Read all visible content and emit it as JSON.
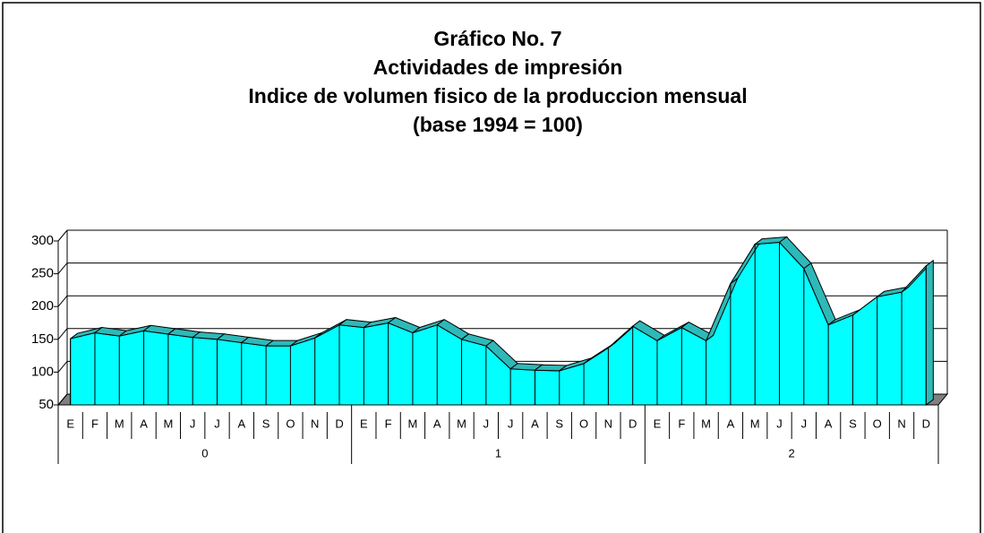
{
  "chart_data": {
    "type": "area3d",
    "title": [
      "Gráfico No. 7",
      "Actividades de impresión",
      "Indice de volumen fisico de la produccion mensual",
      "(base 1994 = 100)"
    ],
    "categories": [
      "E",
      "F",
      "M",
      "A",
      "M",
      "J",
      "J",
      "A",
      "S",
      "O",
      "N",
      "D",
      "E",
      "F",
      "M",
      "A",
      "M",
      "J",
      "J",
      "A",
      "S",
      "O",
      "N",
      "D",
      "E",
      "F",
      "M",
      "A",
      "M",
      "J",
      "J",
      "A",
      "S",
      "O",
      "N",
      "D"
    ],
    "groups": [
      "0",
      "1",
      "2"
    ],
    "values": [
      151,
      160,
      155,
      163,
      158,
      153,
      150,
      145,
      140,
      140,
      152,
      172,
      168,
      175,
      160,
      172,
      150,
      140,
      105,
      103,
      102,
      113,
      137,
      170,
      148,
      168,
      148,
      235,
      295,
      298,
      258,
      172,
      187,
      215,
      222,
      262
    ],
    "color": "#00ffff",
    "top_color": "#2fb8b8",
    "floor_color": "#808080",
    "ylim": [
      50,
      300
    ],
    "yticks": [
      50,
      100,
      150,
      200,
      250,
      300
    ],
    "grid": true
  }
}
